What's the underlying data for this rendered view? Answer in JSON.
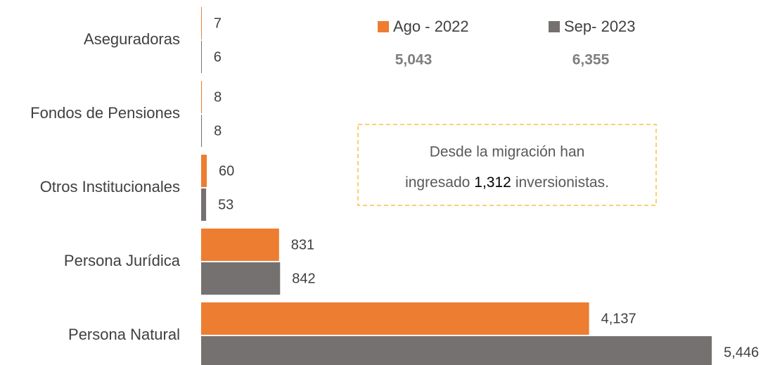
{
  "chart_data": {
    "type": "bar",
    "orientation": "horizontal",
    "categories": [
      "Aseguradoras",
      "Fondos de Pensiones",
      "Otros Institucionales",
      "Persona Jurídica",
      "Persona Natural"
    ],
    "series": [
      {
        "name": "Ago - 2022",
        "color": "#ed7d31",
        "values": [
          7,
          8,
          60,
          831,
          4137
        ],
        "value_labels": [
          "7",
          "8",
          "60",
          "831",
          "4,137"
        ],
        "total": {
          "value": 5043,
          "label": "5,043"
        }
      },
      {
        "name": "Sep- 2023",
        "color": "#767171",
        "values": [
          6,
          8,
          53,
          842,
          5446
        ],
        "value_labels": [
          "6",
          "8",
          "53",
          "842",
          "5,446"
        ],
        "total": {
          "value": 6355,
          "label": "6,355"
        }
      }
    ],
    "xlim": [
      0,
      6000
    ],
    "annotation": {
      "line1": "Desde la migración han",
      "before": "ingresado",
      "highlight": "1,312",
      "after": "inversionistas."
    }
  }
}
